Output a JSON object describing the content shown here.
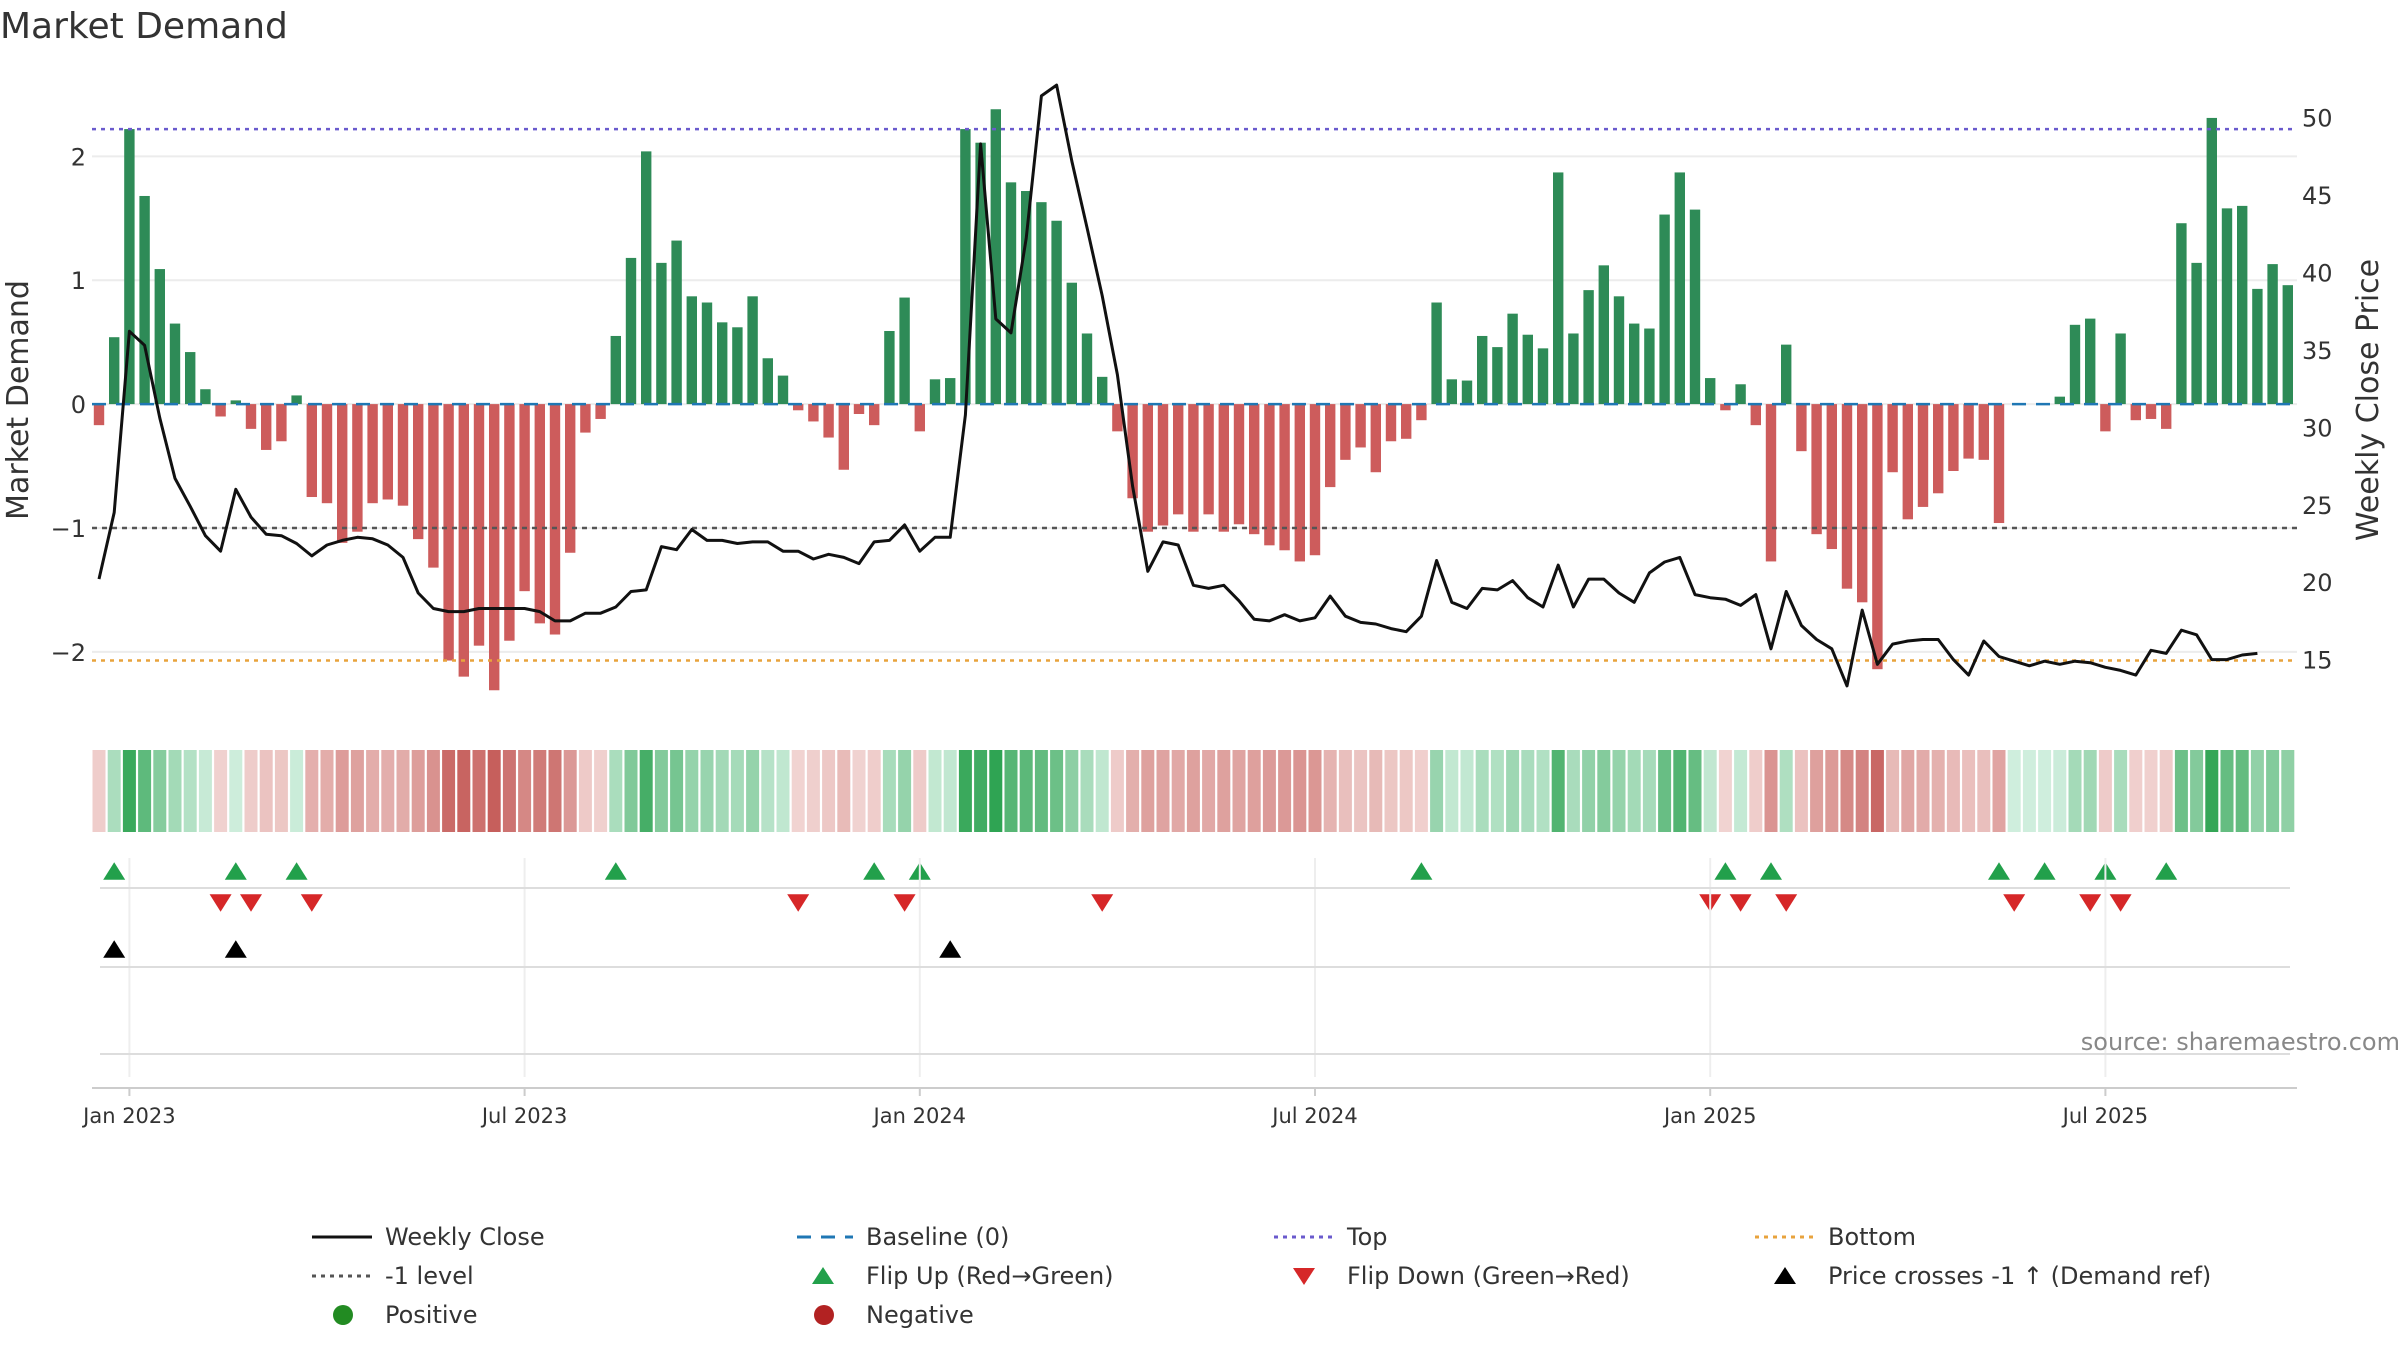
{
  "title": "Market Demand",
  "source": "source: sharemaestro.com",
  "chart_data": {
    "type": "bar",
    "title": "Market Demand",
    "ylabel": "Market Demand",
    "y2label": "Weekly Close Price",
    "ylim": [
      -2.55,
      2.6
    ],
    "y2lim": [
      11.1,
      52.3
    ],
    "yticks": [
      -2,
      -1,
      0,
      1,
      2
    ],
    "yticklabels": [
      "−2",
      "−1",
      "0",
      "1",
      "2"
    ],
    "y2ticks": [
      15,
      20,
      25,
      30,
      35,
      40,
      45,
      50
    ],
    "y2ticklabels": [
      "15",
      "20",
      "25",
      "30",
      "35",
      "40",
      "45",
      "50"
    ],
    "x_start": "2022-12-18",
    "x_step_weeks": 1,
    "xticklabels": [
      "Jan 2023",
      "Jul 2023",
      "Jan 2024",
      "Jul 2024",
      "Jan 2025",
      "Jul 2025"
    ],
    "xtick_week_index": [
      2,
      28,
      54,
      80,
      106,
      132
    ],
    "reference_lines": {
      "top": 2.22,
      "minus_one": -1.0,
      "bottom": -2.07,
      "baseline": 0
    },
    "demand": [
      -0.17,
      0.54,
      2.22,
      1.68,
      1.09,
      0.65,
      0.42,
      0.12,
      -0.1,
      0.03,
      -0.2,
      -0.37,
      -0.3,
      0.07,
      -0.75,
      -0.8,
      -1.12,
      -1.03,
      -0.8,
      -0.77,
      -0.82,
      -1.09,
      -1.32,
      -2.07,
      -2.2,
      -1.95,
      -2.31,
      -1.91,
      -1.51,
      -1.77,
      -1.86,
      -1.2,
      -0.23,
      -0.12,
      0.55,
      1.18,
      2.04,
      1.14,
      1.32,
      0.87,
      0.82,
      0.66,
      0.62,
      0.87,
      0.37,
      0.23,
      -0.05,
      -0.14,
      -0.27,
      -0.53,
      -0.08,
      -0.17,
      0.59,
      0.86,
      -0.22,
      0.2,
      0.21,
      2.22,
      2.11,
      2.38,
      1.79,
      1.72,
      1.63,
      1.48,
      0.98,
      0.57,
      0.22,
      -0.22,
      -0.76,
      -1.03,
      -0.98,
      -0.89,
      -1.03,
      -0.89,
      -1.03,
      -0.97,
      -1.05,
      -1.14,
      -1.18,
      -1.27,
      -1.22,
      -0.67,
      -0.45,
      -0.35,
      -0.55,
      -0.3,
      -0.28,
      -0.13,
      0.82,
      0.2,
      0.19,
      0.55,
      0.46,
      0.73,
      0.56,
      0.45,
      1.87,
      0.57,
      0.92,
      1.12,
      0.87,
      0.65,
      0.61,
      1.53,
      1.87,
      1.57,
      0.21,
      -0.05,
      0.16,
      -0.17,
      -1.27,
      0.48,
      -0.38,
      -1.05,
      -1.17,
      -1.49,
      -1.6,
      -2.14,
      -0.55,
      -0.93,
      -0.83,
      -0.72,
      -0.54,
      -0.44,
      -0.45,
      -0.96,
      0.0,
      0.0,
      0.0,
      0.06,
      0.64,
      0.69,
      -0.22,
      0.57,
      -0.13,
      -0.12,
      -0.2,
      1.46,
      1.14,
      2.31,
      1.58,
      1.6,
      0.93,
      1.13,
      0.96
    ],
    "weekly_close": [
      20.2,
      24.5,
      36.2,
      35.3,
      30.6,
      26.7,
      24.9,
      23.0,
      22.0,
      26.0,
      24.2,
      23.1,
      23.0,
      22.5,
      21.7,
      22.4,
      22.7,
      22.9,
      22.8,
      22.4,
      21.6,
      19.3,
      18.3,
      18.1,
      18.1,
      18.3,
      18.3,
      18.3,
      18.3,
      18.1,
      17.5,
      17.5,
      18.0,
      18.0,
      18.4,
      19.4,
      19.5,
      22.3,
      22.1,
      23.4,
      22.7,
      22.7,
      22.5,
      22.6,
      22.6,
      22.0,
      22.0,
      21.5,
      21.8,
      21.6,
      21.2,
      22.6,
      22.7,
      23.7,
      22.0,
      22.9,
      22.9,
      30.8,
      48.3,
      37.0,
      36.1,
      42.2,
      51.4,
      52.1,
      47.2,
      42.9,
      38.5,
      33.4,
      26.2,
      20.7,
      22.6,
      22.4,
      19.8,
      19.6,
      19.8,
      18.8,
      17.6,
      17.5,
      17.9,
      17.5,
      17.7,
      19.1,
      17.8,
      17.4,
      17.3,
      17.0,
      16.8,
      17.8,
      21.4,
      18.7,
      18.3,
      19.6,
      19.5,
      20.1,
      19.0,
      18.4,
      21.1,
      18.4,
      20.2,
      20.2,
      19.3,
      18.7,
      20.6,
      21.3,
      21.6,
      19.2,
      19.0,
      18.9,
      18.5,
      19.2,
      15.7,
      19.4,
      17.2,
      16.3,
      15.7,
      13.3,
      18.2,
      14.7,
      16.0,
      16.2,
      16.3,
      16.3,
      15.0,
      14.0,
      16.2,
      15.2,
      14.9,
      14.6,
      14.9,
      14.7,
      14.9,
      14.8,
      14.5,
      14.3,
      14.0,
      15.6,
      15.4,
      16.9,
      16.6,
      15.0,
      15.0,
      15.3,
      15.4
    ],
    "flip_up_weeks": [
      1,
      9,
      13,
      34,
      51,
      54,
      87,
      107,
      110,
      125,
      128,
      132,
      136
    ],
    "flip_down_weeks": [
      8,
      10,
      14,
      46,
      53,
      66,
      106,
      108,
      111,
      126,
      131,
      133
    ],
    "price_cross_weeks": [
      1,
      9,
      56
    ],
    "positive_color": "#2e8b57",
    "negative_color": "#cd5c5c",
    "legend": [
      {
        "label": "Weekly Close",
        "style": "solid",
        "color": "#111111"
      },
      {
        "label": "Baseline (0)",
        "style": "dash",
        "color": "#1f77b4"
      },
      {
        "label": "Top",
        "style": "dot",
        "color": "#6a5acd"
      },
      {
        "label": "Bottom",
        "style": "dot",
        "color": "#e8a33d"
      },
      {
        "label": "-1 level",
        "style": "dot",
        "color": "#555555"
      },
      {
        "label": "Flip Up (Red→Green)",
        "style": "tri-up",
        "color": "#22a04b"
      },
      {
        "label": "Flip Down (Green→Red)",
        "style": "tri-down",
        "color": "#d62728"
      },
      {
        "label": "Price crosses -1 ↑ (Demand ref)",
        "style": "tri-up",
        "color": "#000000"
      },
      {
        "label": "Positive",
        "style": "circle",
        "color": "#228b22"
      },
      {
        "label": "Negative",
        "style": "circle",
        "color": "#b22222"
      }
    ]
  }
}
